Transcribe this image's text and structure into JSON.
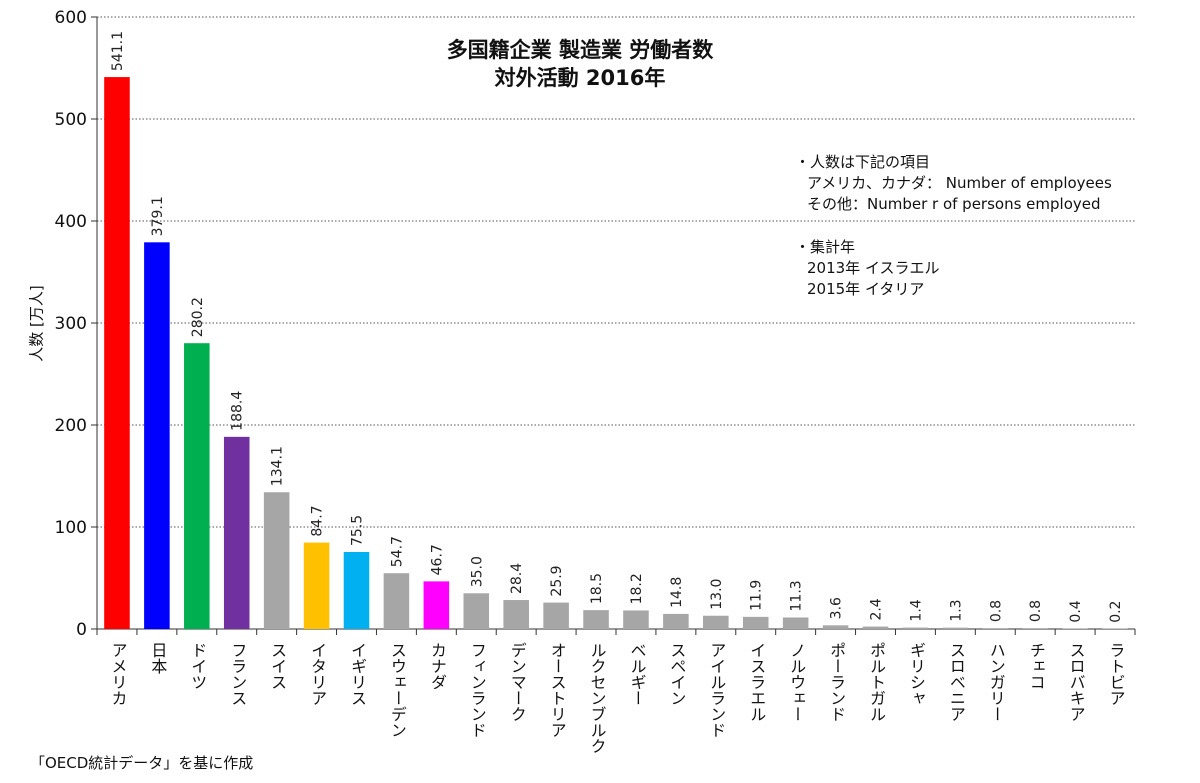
{
  "chart_data": {
    "type": "bar",
    "title": "多国籍企業 製造業 労働者数",
    "subtitle": "対外活動 2016年",
    "ylabel": "人数 [万人]",
    "xlabel": "",
    "ylim": [
      0,
      600
    ],
    "yticks": [
      "0",
      "100",
      "200",
      "300",
      "400",
      "500",
      "600"
    ],
    "grid": true,
    "categories": [
      "アメリカ",
      "日本",
      "ドイツ",
      "フランス",
      "スイス",
      "イタリア",
      "イギリス",
      "スウェーデン",
      "カナダ",
      "フィンランド",
      "デンマーク",
      "オーストリア",
      "ルクセンブルク",
      "ベルギー",
      "スペイン",
      "アイルランド",
      "イスラエル",
      "ノルウェー",
      "ポーランド",
      "ポルトガル",
      "ギリシャ",
      "スロベニア",
      "ハンガリー",
      "チェコ",
      "スロバキア",
      "ラトビア"
    ],
    "values": [
      541.1,
      379.1,
      280.2,
      188.4,
      134.1,
      84.7,
      75.5,
      54.7,
      46.7,
      35.0,
      28.4,
      25.9,
      18.5,
      18.2,
      14.8,
      13.0,
      11.9,
      11.3,
      3.6,
      2.4,
      1.4,
      1.3,
      0.8,
      0.8,
      0.4,
      0.2
    ],
    "value_labels": [
      "541.1",
      "379.1",
      "280.2",
      "188.4",
      "134.1",
      "84.7",
      "75.5",
      "54.7",
      "46.7",
      "35.0",
      "28.4",
      "25.9",
      "18.5",
      "18.2",
      "14.8",
      "13.0",
      "11.9",
      "11.3",
      "3.6",
      "2.4",
      "1.4",
      "1.3",
      "0.8",
      "0.8",
      "0.4",
      "0.2"
    ],
    "colors": [
      "#ff0000",
      "#0000ff",
      "#00b050",
      "#7030a0",
      "#a6a6a6",
      "#ffc000",
      "#00b0f0",
      "#a6a6a6",
      "#ff00ff",
      "#a6a6a6",
      "#a6a6a6",
      "#a6a6a6",
      "#a6a6a6",
      "#a6a6a6",
      "#a6a6a6",
      "#a6a6a6",
      "#a6a6a6",
      "#a6a6a6",
      "#a6a6a6",
      "#a6a6a6",
      "#a6a6a6",
      "#a6a6a6",
      "#a6a6a6",
      "#a6a6a6",
      "#a6a6a6",
      "#a6a6a6"
    ]
  },
  "notes": {
    "item1_head": "・人数は下記の項目",
    "item1_line1": "アメリカ、カナダ： Number of employees",
    "item1_line2": "その他：Number r of persons employed",
    "item2_head": "・集計年",
    "item2_line1": "2013年 イスラエル",
    "item2_line2": "2015年 イタリア"
  },
  "source": "「OECD統計データ」を基に作成"
}
